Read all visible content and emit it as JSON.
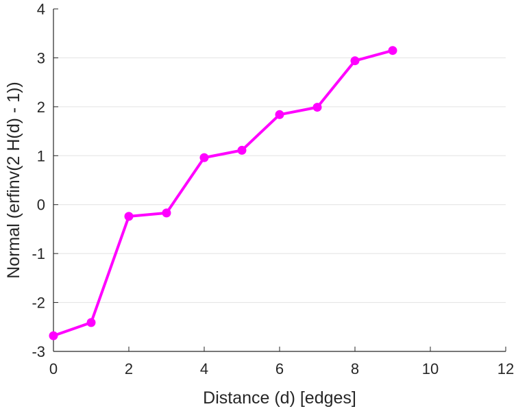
{
  "chart_data": {
    "type": "line",
    "title": "",
    "xlabel": "Distance (d) [edges]",
    "ylabel": "Normal (erfinv(2 H(d) - 1))",
    "xlim": [
      0,
      12
    ],
    "ylim": [
      -3,
      4
    ],
    "xticks": [
      "0",
      "2",
      "4",
      "6",
      "8",
      "10",
      "12"
    ],
    "yticks": [
      "-3",
      "-2",
      "-1",
      "0",
      "1",
      "2",
      "3",
      "4"
    ],
    "grid": "horizontal",
    "legend": "none",
    "series": [
      {
        "color": "#ff00ff",
        "marker": "circle",
        "x": [
          0,
          1,
          2,
          3,
          4,
          5,
          6,
          7,
          8,
          9
        ],
        "y": [
          -2.68,
          -2.41,
          -0.24,
          -0.17,
          0.96,
          1.11,
          1.84,
          1.99,
          2.94,
          3.15
        ]
      }
    ]
  }
}
